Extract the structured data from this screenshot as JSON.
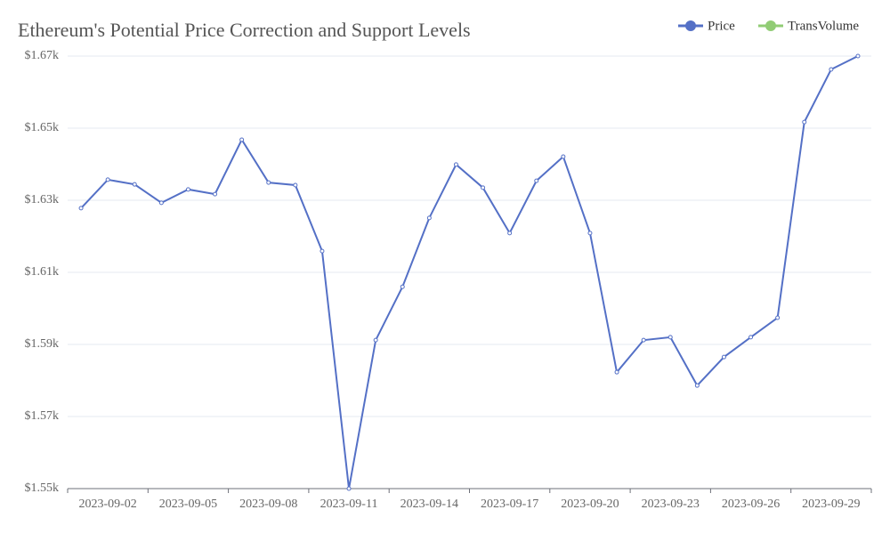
{
  "chart_data": {
    "type": "line",
    "title": "Ethereum's Potential Price Correction and Support Levels",
    "x": [
      "2023-09-01",
      "2023-09-02",
      "2023-09-03",
      "2023-09-04",
      "2023-09-05",
      "2023-09-06",
      "2023-09-07",
      "2023-09-08",
      "2023-09-09",
      "2023-09-10",
      "2023-09-11",
      "2023-09-12",
      "2023-09-13",
      "2023-09-14",
      "2023-09-15",
      "2023-09-16",
      "2023-09-17",
      "2023-09-18",
      "2023-09-19",
      "2023-09-20",
      "2023-09-21",
      "2023-09-22",
      "2023-09-23",
      "2023-09-24",
      "2023-09-25",
      "2023-09-26",
      "2023-09-27",
      "2023-09-28",
      "2023-09-29",
      "2023-09-30"
    ],
    "series": [
      {
        "name": "Price",
        "color": "#5470c6",
        "values": [
          1627.8,
          1635.7,
          1634.4,
          1629.3,
          1633.0,
          1631.7,
          1646.8,
          1634.9,
          1634.2,
          1615.9,
          1550,
          1591.2,
          1606.0,
          1625.1,
          1639.9,
          1633.5,
          1620.9,
          1635.4,
          1642.1,
          1620.9,
          1582.3,
          1591.2,
          1592.0,
          1578.6,
          1586.5,
          1592.0,
          1597.4,
          1651.7,
          1666.3,
          1670
        ]
      },
      {
        "name": "TransVolume",
        "color": "#91cc75",
        "values": [
          null,
          null,
          null,
          null,
          null,
          null,
          null,
          null,
          null,
          null,
          null,
          null,
          null,
          null,
          null,
          null,
          null,
          null,
          null,
          null,
          null,
          null,
          null,
          null,
          null,
          null,
          null,
          null,
          null,
          null
        ]
      }
    ],
    "ylim": [
      1550,
      1670
    ],
    "yticks": [
      {
        "value": 1550,
        "label": "$1.55k"
      },
      {
        "value": 1570,
        "label": "$1.57k"
      },
      {
        "value": 1590,
        "label": "$1.59k"
      },
      {
        "value": 1610,
        "label": "$1.61k"
      },
      {
        "value": 1630,
        "label": "$1.63k"
      },
      {
        "value": 1650,
        "label": "$1.65k"
      },
      {
        "value": 1670,
        "label": "$1.67k"
      }
    ],
    "grid": true,
    "legend": "top-right"
  }
}
